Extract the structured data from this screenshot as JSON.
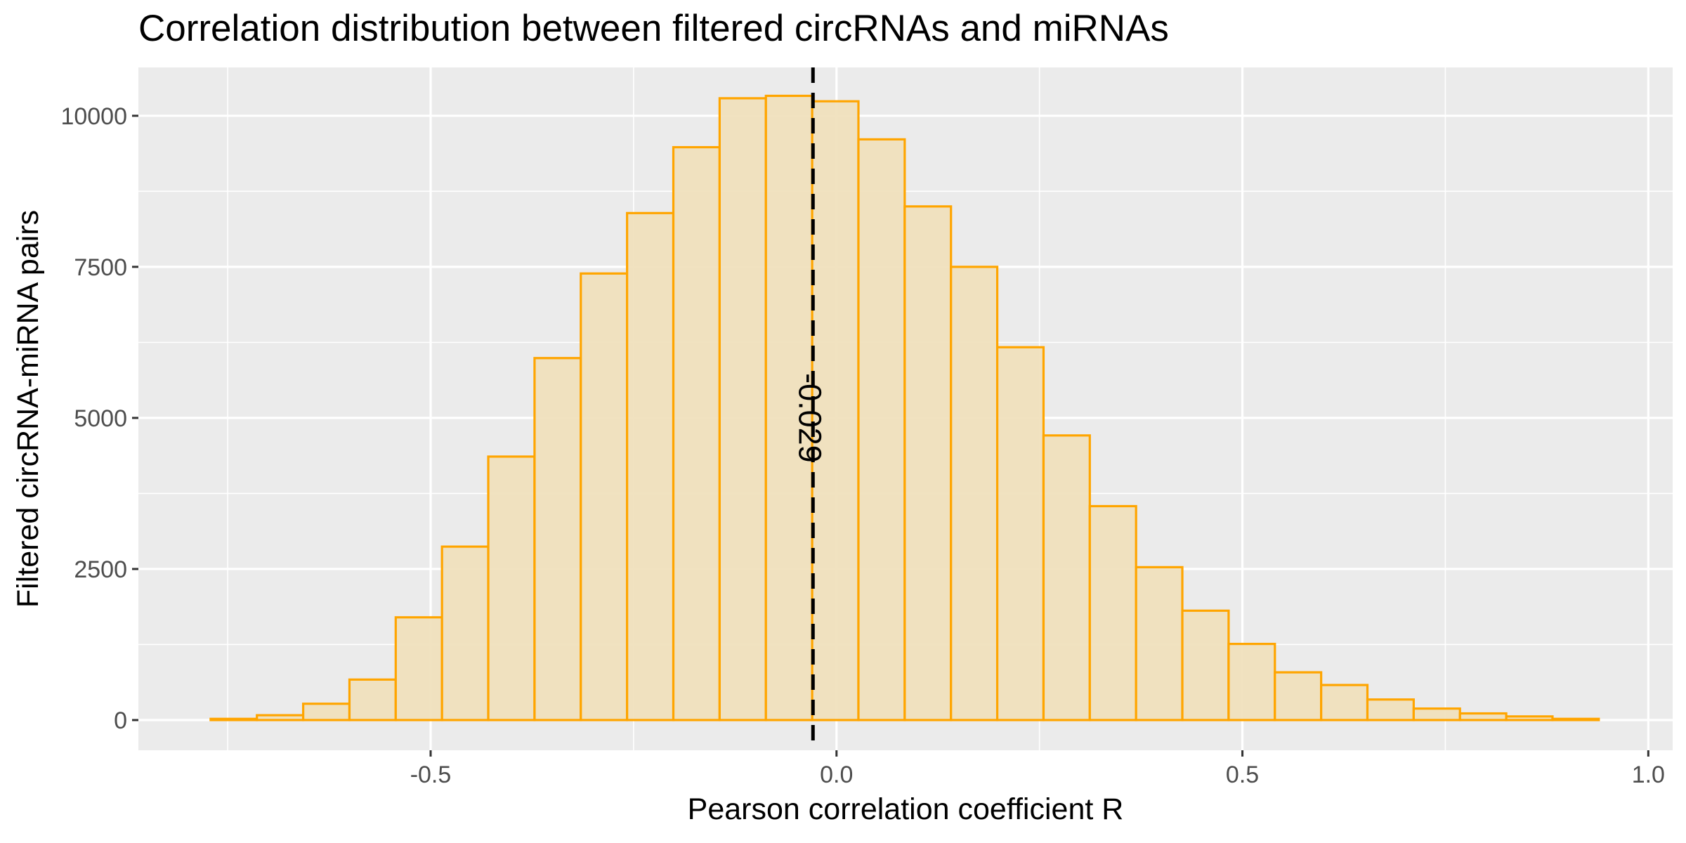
{
  "chart_data": {
    "type": "bar",
    "title": "Correlation distribution between filtered circRNAs and miRNAs",
    "xlabel": "Pearson correlation coefficient R",
    "ylabel": "Filtered circRNA-miRNA pairs",
    "xlim": [
      -0.86,
      1.03
    ],
    "ylim": [
      -500,
      10800
    ],
    "xticks": [
      -0.5,
      0.0,
      0.5,
      1.0
    ],
    "xtick_labels": [
      "-0.5",
      "0.0",
      "0.5",
      "1.0"
    ],
    "yticks": [
      0,
      2500,
      5000,
      7500,
      10000
    ],
    "ytick_labels": [
      "0",
      "2500",
      "5000",
      "7500",
      "10000"
    ],
    "grid": true,
    "bin_edges": [
      -0.771,
      -0.714,
      -0.657,
      -0.6,
      -0.543,
      -0.486,
      -0.429,
      -0.372,
      -0.315,
      -0.258,
      -0.201,
      -0.144,
      -0.087,
      -0.03,
      0.027,
      0.084,
      0.141,
      0.198,
      0.255,
      0.312,
      0.369,
      0.426,
      0.483,
      0.54,
      0.597,
      0.654,
      0.711,
      0.768,
      0.825,
      0.882,
      0.939
    ],
    "counts": [
      20,
      80,
      270,
      670,
      1700,
      2870,
      4360,
      5990,
      7390,
      8390,
      9480,
      10290,
      10330,
      10240,
      9610,
      8500,
      7500,
      6170,
      4710,
      3540,
      2530,
      1810,
      1260,
      790,
      580,
      340,
      190,
      110,
      60,
      20
    ],
    "fill_color": "#f0dfbb",
    "edge_color": "#ffa500",
    "reference_line": {
      "x": -0.029,
      "label": "-0.029",
      "style": "dashed",
      "color": "#000000"
    }
  }
}
